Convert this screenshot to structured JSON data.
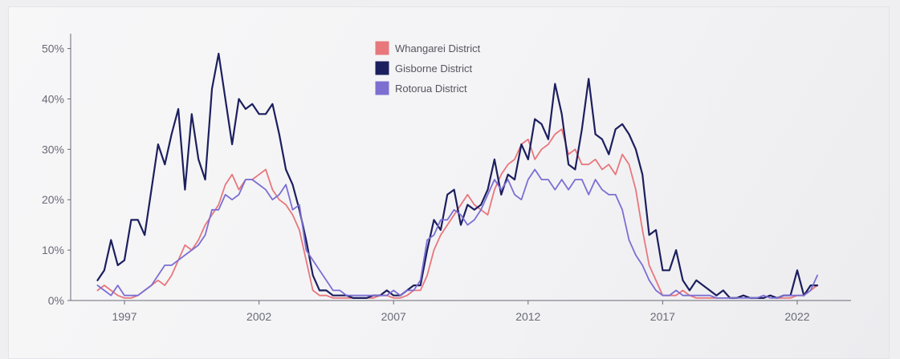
{
  "chart_data": {
    "type": "line",
    "title": "",
    "xlabel": "",
    "ylabel": "",
    "xlim": [
      1995,
      2024
    ],
    "ylim": [
      0,
      52
    ],
    "x_ticks": [
      1997,
      2002,
      2007,
      2012,
      2017,
      2022
    ],
    "y_ticks": [
      0,
      10,
      20,
      30,
      40,
      50
    ],
    "y_tick_labels": [
      "0%",
      "10%",
      "20%",
      "30%",
      "40%",
      "50%"
    ],
    "legend_position": "top-center",
    "grid": false,
    "series": [
      {
        "name": "Whangarei District",
        "color": "#e8777c",
        "x": [
          1996.0,
          1996.25,
          1996.5,
          1996.75,
          1997.0,
          1997.25,
          1997.5,
          1997.75,
          1998.0,
          1998.25,
          1998.5,
          1998.75,
          1999.0,
          1999.25,
          1999.5,
          1999.75,
          2000.0,
          2000.25,
          2000.5,
          2000.75,
          2001.0,
          2001.25,
          2001.5,
          2001.75,
          2002.0,
          2002.25,
          2002.5,
          2002.75,
          2003.0,
          2003.25,
          2003.5,
          2003.75,
          2004.0,
          2004.25,
          2004.5,
          2004.75,
          2005.0,
          2005.25,
          2005.5,
          2005.75,
          2006.0,
          2006.25,
          2006.5,
          2006.75,
          2007.0,
          2007.25,
          2007.5,
          2007.75,
          2008.0,
          2008.25,
          2008.5,
          2008.75,
          2009.0,
          2009.25,
          2009.5,
          2009.75,
          2010.0,
          2010.25,
          2010.5,
          2010.75,
          2011.0,
          2011.25,
          2011.5,
          2011.75,
          2012.0,
          2012.25,
          2012.5,
          2012.75,
          2013.0,
          2013.25,
          2013.5,
          2013.75,
          2014.0,
          2014.25,
          2014.5,
          2014.75,
          2015.0,
          2015.25,
          2015.5,
          2015.75,
          2016.0,
          2016.25,
          2016.5,
          2016.75,
          2017.0,
          2017.25,
          2017.5,
          2017.75,
          2018.0,
          2018.25,
          2018.5,
          2018.75,
          2019.0,
          2019.25,
          2019.5,
          2019.75,
          2020.0,
          2020.25,
          2020.5,
          2020.75,
          2021.0,
          2021.25,
          2021.5,
          2021.75,
          2022.0,
          2022.25,
          2022.5,
          2022.75
        ],
        "values": [
          2,
          3,
          2,
          1,
          0.5,
          0.5,
          1,
          2,
          3,
          4,
          3,
          5,
          8,
          11,
          10,
          12,
          15,
          17,
          19,
          23,
          25,
          22,
          24,
          24,
          25,
          26,
          22,
          20,
          19,
          17,
          14,
          8,
          2,
          1,
          1,
          0.5,
          0.5,
          0.5,
          0.5,
          0.5,
          0.5,
          0.5,
          1,
          1,
          0.5,
          0.5,
          1,
          2,
          2,
          5,
          10,
          13,
          15,
          17,
          19,
          21,
          19,
          18,
          17,
          22,
          25,
          27,
          28,
          31,
          32,
          28,
          30,
          31,
          33,
          34,
          29,
          30,
          27,
          27,
          28,
          26,
          27,
          25,
          29,
          27,
          22,
          14,
          7,
          4,
          1,
          1,
          1,
          2,
          1,
          0.5,
          0.5,
          0.5,
          0.5,
          0.5,
          0.5,
          0.5,
          1,
          0.5,
          0.5,
          0.5,
          1,
          0.5,
          0.5,
          0.5,
          1,
          1,
          2,
          3
        ]
      },
      {
        "name": "Gisborne District",
        "color": "#1c1f5e",
        "x": [
          1996.0,
          1996.25,
          1996.5,
          1996.75,
          1997.0,
          1997.25,
          1997.5,
          1997.75,
          1998.0,
          1998.25,
          1998.5,
          1998.75,
          1999.0,
          1999.25,
          1999.5,
          1999.75,
          2000.0,
          2000.25,
          2000.5,
          2000.75,
          2001.0,
          2001.25,
          2001.5,
          2001.75,
          2002.0,
          2002.25,
          2002.5,
          2002.75,
          2003.0,
          2003.25,
          2003.5,
          2003.75,
          2004.0,
          2004.25,
          2004.5,
          2004.75,
          2005.0,
          2005.25,
          2005.5,
          2005.75,
          2006.0,
          2006.25,
          2006.5,
          2006.75,
          2007.0,
          2007.25,
          2007.5,
          2007.75,
          2008.0,
          2008.25,
          2008.5,
          2008.75,
          2009.0,
          2009.25,
          2009.5,
          2009.75,
          2010.0,
          2010.25,
          2010.5,
          2010.75,
          2011.0,
          2011.25,
          2011.5,
          2011.75,
          2012.0,
          2012.25,
          2012.5,
          2012.75,
          2013.0,
          2013.25,
          2013.5,
          2013.75,
          2014.0,
          2014.25,
          2014.5,
          2014.75,
          2015.0,
          2015.25,
          2015.5,
          2015.75,
          2016.0,
          2016.25,
          2016.5,
          2016.75,
          2017.0,
          2017.25,
          2017.5,
          2017.75,
          2018.0,
          2018.25,
          2018.5,
          2018.75,
          2019.0,
          2019.25,
          2019.5,
          2019.75,
          2020.0,
          2020.25,
          2020.5,
          2020.75,
          2021.0,
          2021.25,
          2021.5,
          2021.75,
          2022.0,
          2022.25,
          2022.5,
          2022.75
        ],
        "values": [
          4,
          6,
          12,
          7,
          8,
          16,
          16,
          13,
          22,
          31,
          27,
          33,
          38,
          22,
          37,
          28,
          24,
          42,
          49,
          40,
          31,
          40,
          38,
          39,
          37,
          37,
          39,
          33,
          26,
          23,
          18,
          12,
          5,
          2,
          2,
          1,
          1,
          1,
          0.5,
          0.5,
          0.5,
          1,
          1,
          2,
          1,
          1,
          2,
          3,
          3,
          10,
          16,
          14,
          21,
          22,
          15,
          19,
          18,
          19,
          22,
          28,
          21,
          25,
          24,
          31,
          28,
          36,
          35,
          32,
          43,
          37,
          27,
          26,
          34,
          44,
          33,
          32,
          29,
          34,
          35,
          33,
          30,
          25,
          13,
          14,
          6,
          6,
          10,
          4,
          2,
          4,
          3,
          2,
          1,
          2,
          0.5,
          0.5,
          1,
          0.5,
          0.5,
          0.5,
          1,
          0.5,
          1,
          1,
          6,
          1,
          3,
          3
        ]
      },
      {
        "name": "Rotorua District",
        "color": "#7b6fd2",
        "x": [
          1996.0,
          1996.25,
          1996.5,
          1996.75,
          1997.0,
          1997.25,
          1997.5,
          1997.75,
          1998.0,
          1998.25,
          1998.5,
          1998.75,
          1999.0,
          1999.25,
          1999.5,
          1999.75,
          2000.0,
          2000.25,
          2000.5,
          2000.75,
          2001.0,
          2001.25,
          2001.5,
          2001.75,
          2002.0,
          2002.25,
          2002.5,
          2002.75,
          2003.0,
          2003.25,
          2003.5,
          2003.75,
          2004.0,
          2004.25,
          2004.5,
          2004.75,
          2005.0,
          2005.25,
          2005.5,
          2005.75,
          2006.0,
          2006.25,
          2006.5,
          2006.75,
          2007.0,
          2007.25,
          2007.5,
          2007.75,
          2008.0,
          2008.25,
          2008.5,
          2008.75,
          2009.0,
          2009.25,
          2009.5,
          2009.75,
          2010.0,
          2010.25,
          2010.5,
          2010.75,
          2011.0,
          2011.25,
          2011.5,
          2011.75,
          2012.0,
          2012.25,
          2012.5,
          2012.75,
          2013.0,
          2013.25,
          2013.5,
          2013.75,
          2014.0,
          2014.25,
          2014.5,
          2014.75,
          2015.0,
          2015.25,
          2015.5,
          2015.75,
          2016.0,
          2016.25,
          2016.5,
          2016.75,
          2017.0,
          2017.25,
          2017.5,
          2017.75,
          2018.0,
          2018.25,
          2018.5,
          2018.75,
          2019.0,
          2019.25,
          2019.5,
          2019.75,
          2020.0,
          2020.25,
          2020.5,
          2020.75,
          2021.0,
          2021.25,
          2021.5,
          2021.75,
          2022.0,
          2022.25,
          2022.5,
          2022.75
        ],
        "values": [
          3,
          2,
          1,
          3,
          1,
          1,
          1,
          2,
          3,
          5,
          7,
          7,
          8,
          9,
          10,
          11,
          13,
          18,
          18,
          21,
          20,
          21,
          24,
          24,
          23,
          22,
          20,
          21,
          23,
          18,
          19,
          10,
          8,
          6,
          4,
          2,
          2,
          1,
          1,
          1,
          1,
          1,
          1,
          1,
          2,
          1,
          2,
          2,
          4,
          12,
          13,
          16,
          16,
          18,
          17,
          15,
          16,
          18,
          21,
          24,
          22,
          24,
          21,
          20,
          24,
          26,
          24,
          24,
          22,
          24,
          22,
          24,
          24,
          21,
          24,
          22,
          21,
          21,
          18,
          12,
          9,
          7,
          4,
          2,
          1,
          1,
          2,
          1,
          1,
          1,
          1,
          1,
          0.5,
          0.5,
          0.5,
          0.5,
          0.5,
          0.5,
          0.5,
          1,
          0.5,
          0.5,
          1,
          1,
          1,
          1,
          2,
          5
        ]
      }
    ]
  }
}
